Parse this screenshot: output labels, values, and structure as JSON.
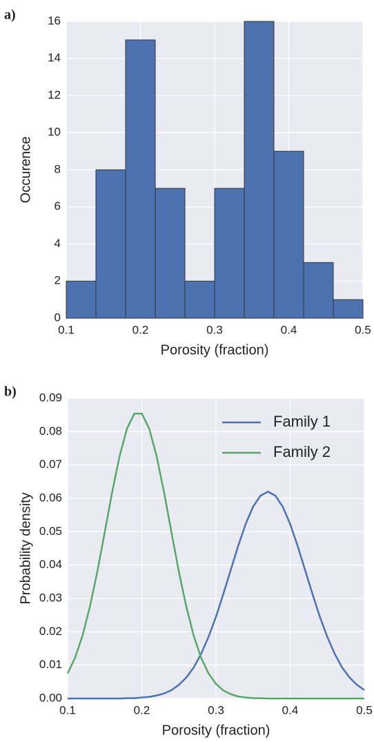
{
  "chart_data": [
    {
      "type": "histogram",
      "panel_label": "a)",
      "xlabel": "Porosity (fraction)",
      "ylabel": "Occurence",
      "bins": [
        0.1,
        0.14,
        0.18,
        0.22,
        0.26,
        0.3,
        0.34,
        0.38,
        0.42,
        0.46,
        0.5
      ],
      "values": [
        2,
        8,
        15,
        7,
        2,
        7,
        16,
        9,
        3,
        1
      ],
      "color": "#4c72b0",
      "xlim": [
        0.1,
        0.5
      ],
      "xticks": [
        0.1,
        0.2,
        0.3,
        0.4,
        0.5
      ],
      "ylim": [
        0,
        16
      ],
      "yticks": [
        0,
        2,
        4,
        6,
        8,
        10,
        12,
        14,
        16
      ],
      "grid": true
    },
    {
      "type": "line",
      "panel_label": "b)",
      "xlabel": "Porosity (fraction)",
      "ylabel": "Probability density",
      "x": [
        0.1,
        0.11,
        0.12,
        0.13,
        0.14,
        0.15,
        0.16,
        0.17,
        0.18,
        0.19,
        0.2,
        0.21,
        0.22,
        0.23,
        0.24,
        0.25,
        0.26,
        0.27,
        0.28,
        0.29,
        0.3,
        0.31,
        0.32,
        0.33,
        0.34,
        0.35,
        0.36,
        0.37,
        0.38,
        0.39,
        0.4,
        0.41,
        0.42,
        0.43,
        0.44,
        0.45,
        0.46,
        0.47,
        0.48,
        0.49,
        0.5
      ],
      "series": [
        {
          "name": "Family 1",
          "color": "#4c72b0",
          "values": [
            0,
            0,
            0,
            0,
            0,
            0,
            0,
            0,
            0.0001,
            0.0001,
            0.0003,
            0.0005,
            0.0009,
            0.0015,
            0.0025,
            0.0041,
            0.0063,
            0.0093,
            0.0134,
            0.0185,
            0.0245,
            0.0314,
            0.0386,
            0.0458,
            0.0523,
            0.0575,
            0.0608,
            0.062,
            0.0608,
            0.0575,
            0.0523,
            0.0458,
            0.0386,
            0.0314,
            0.0245,
            0.0185,
            0.0134,
            0.0093,
            0.0063,
            0.0041,
            0.0025
          ]
        },
        {
          "name": "Family 2",
          "color": "#55a868",
          "values": [
            0.0075,
            0.0122,
            0.0188,
            0.0275,
            0.038,
            0.0498,
            0.0618,
            0.0726,
            0.0809,
            0.0854,
            0.0854,
            0.0809,
            0.0726,
            0.0618,
            0.0498,
            0.038,
            0.0275,
            0.0188,
            0.0122,
            0.0075,
            0.0044,
            0.0024,
            0.0013,
            0.0006,
            0.0003,
            0.0001,
            0.0001,
            0,
            0,
            0,
            0,
            0,
            0,
            0,
            0,
            0,
            0,
            0,
            0,
            0,
            0
          ]
        }
      ],
      "xlim": [
        0.1,
        0.5
      ],
      "xticks": [
        0.1,
        0.2,
        0.3,
        0.4,
        0.5
      ],
      "ylim": [
        0,
        0.09
      ],
      "yticks": [
        {
          "value": 0,
          "label": "0.00"
        },
        0.01,
        0.02,
        0.03,
        0.04,
        0.05,
        0.06,
        0.07,
        0.08,
        0.09
      ],
      "grid": true,
      "legend": "upper right"
    }
  ]
}
